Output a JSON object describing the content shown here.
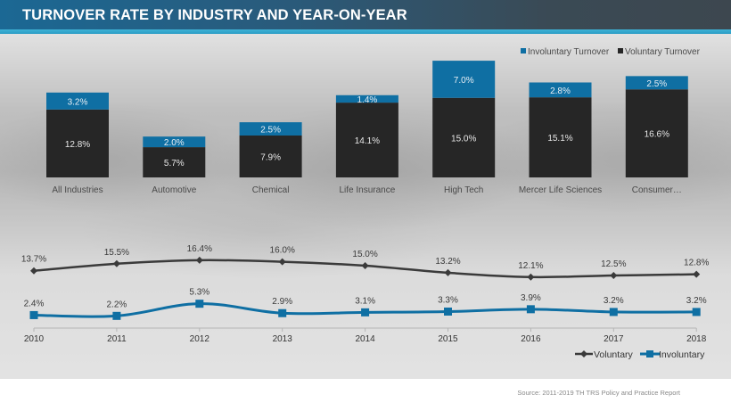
{
  "header": {
    "title": "TURNOVER RATE BY INDUSTRY AND YEAR-ON-YEAR"
  },
  "colors": {
    "involuntary": "#0f6fa3",
    "voluntary": "#262626",
    "header_accent": "#3fb3d6"
  },
  "chart_data": [
    {
      "type": "bar",
      "stacked": true,
      "title": "Turnover rate by industry",
      "categories": [
        "All Industries",
        "Automotive",
        "Chemical",
        "Life Insurance",
        "High Tech",
        "Mercer Life Sciences",
        "Consumer…"
      ],
      "series": [
        {
          "name": "Voluntary Turnover",
          "values": [
            12.8,
            5.7,
            7.9,
            14.1,
            15.0,
            15.1,
            16.6
          ],
          "labels": [
            "12.8%",
            "5.7%",
            "7.9%",
            "14.1%",
            "15.0%",
            "15.1%",
            "16.6%"
          ]
        },
        {
          "name": "Involuntary Turnover",
          "values": [
            3.2,
            2.0,
            2.5,
            1.4,
            7.0,
            2.8,
            2.5
          ],
          "labels": [
            "3.2%",
            "2.0%",
            "2.5%",
            "1.4%",
            "7.0%",
            "2.8%",
            "2.5%"
          ]
        }
      ],
      "legend": {
        "position": "top-right",
        "entries": [
          "Involuntary Turnover",
          "Voluntary Turnover"
        ]
      },
      "xlabel": "",
      "ylabel": "",
      "grid": false,
      "ylim": [
        0,
        22
      ]
    },
    {
      "type": "line",
      "title": "Turnover rate year-on-year",
      "x": [
        "2010",
        "2011",
        "2012",
        "2013",
        "2014",
        "2015",
        "2016",
        "2017",
        "2018"
      ],
      "series": [
        {
          "name": "Voluntary",
          "values": [
            13.7,
            15.5,
            16.4,
            16.0,
            15.0,
            13.2,
            12.1,
            12.5,
            12.8
          ],
          "labels": [
            "13.7%",
            "15.5%",
            "16.4%",
            "16.0%",
            "15.0%",
            "13.2%",
            "12.1%",
            "12.5%",
            "12.8%"
          ],
          "marker": "diamond"
        },
        {
          "name": "Involuntary",
          "values": [
            2.4,
            2.2,
            5.3,
            2.9,
            3.1,
            3.3,
            3.9,
            3.2,
            3.2
          ],
          "labels": [
            "2.4%",
            "2.2%",
            "5.3%",
            "2.9%",
            "3.1%",
            "3.3%",
            "3.9%",
            "3.2%",
            "3.2%"
          ],
          "marker": "square"
        }
      ],
      "legend": {
        "position": "bottom-right",
        "entries": [
          "Voluntary",
          "Involuntary"
        ]
      },
      "xlabel": "",
      "ylabel": "",
      "grid": false,
      "ylim": [
        0,
        17
      ]
    }
  ],
  "footer": {
    "source": "Source: 2011-2019 TH TRS Policy and Practice Report"
  }
}
